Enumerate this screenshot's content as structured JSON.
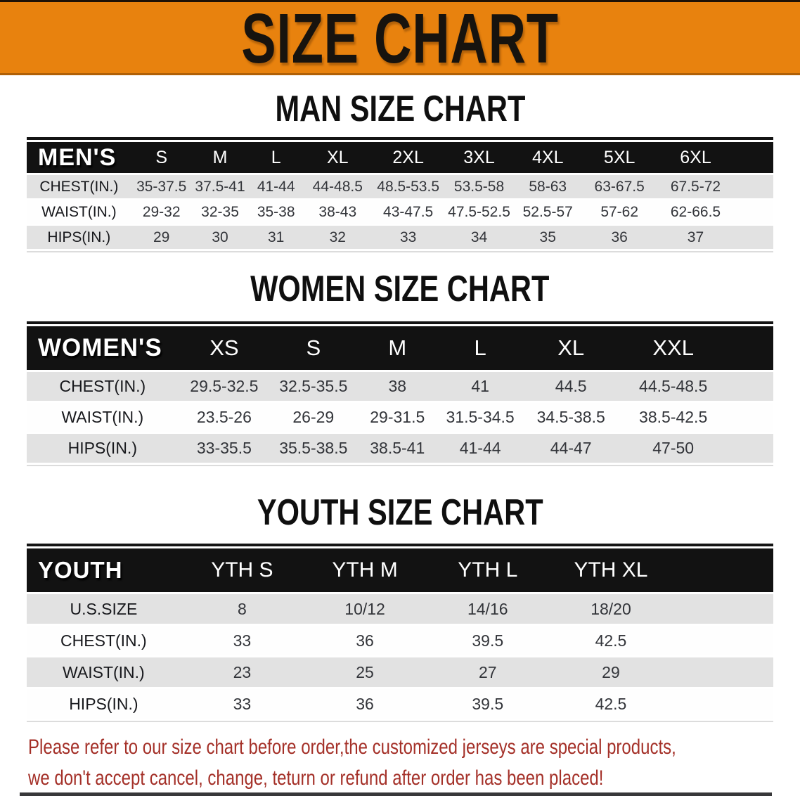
{
  "banner": {
    "title": "SIZE CHART",
    "bg_color": "#E8820E"
  },
  "sections": [
    {
      "heading": "MAN SIZE CHART",
      "table": {
        "corner_label": "MEN'S",
        "columns": [
          "S",
          "M",
          "L",
          "XL",
          "2XL",
          "3XL",
          "4XL",
          "5XL",
          "6XL"
        ],
        "rows": [
          {
            "label": "CHEST(IN.)",
            "values": [
              "35-37.5",
              "37.5-41",
              "41-44",
              "44-48.5",
              "48.5-53.5",
              "53.5-58",
              "58-63",
              "63-67.5",
              "67.5-72"
            ]
          },
          {
            "label": "WAIST(IN.)",
            "values": [
              "29-32",
              "32-35",
              "35-38",
              "38-43",
              "43-47.5",
              "47.5-52.5",
              "52.5-57",
              "57-62",
              "62-66.5"
            ]
          },
          {
            "label": "HIPS(IN.)",
            "values": [
              "29",
              "30",
              "31",
              "32",
              "33",
              "34",
              "35",
              "36",
              "37"
            ]
          }
        ]
      }
    },
    {
      "heading": "WOMEN SIZE CHART",
      "table": {
        "corner_label": "WOMEN'S",
        "columns": [
          "XS",
          "S",
          "M",
          "L",
          "XL",
          "XXL"
        ],
        "rows": [
          {
            "label": "CHEST(IN.)",
            "values": [
              "29.5-32.5",
              "32.5-35.5",
              "38",
              "41",
              "44.5",
              "44.5-48.5"
            ]
          },
          {
            "label": "WAIST(IN.)",
            "values": [
              "23.5-26",
              "26-29",
              "29-31.5",
              "31.5-34.5",
              "34.5-38.5",
              "38.5-42.5"
            ]
          },
          {
            "label": "HIPS(IN.)",
            "values": [
              "33-35.5",
              "35.5-38.5",
              "38.5-41",
              "41-44",
              "44-47",
              "47-50"
            ]
          }
        ]
      }
    },
    {
      "heading": "YOUTH SIZE CHART",
      "table": {
        "corner_label": "YOUTH",
        "columns": [
          "YTH S",
          "YTH M",
          "YTH L",
          "YTH XL"
        ],
        "rows": [
          {
            "label": "U.S.SIZE",
            "values": [
              "8",
              "10/12",
              "14/16",
              "18/20"
            ]
          },
          {
            "label": "CHEST(IN.)",
            "values": [
              "33",
              "36",
              "39.5",
              "42.5"
            ]
          },
          {
            "label": "WAIST(IN.)",
            "values": [
              "23",
              "25",
              "27",
              "29"
            ]
          },
          {
            "label": "HIPS(IN.)",
            "values": [
              "33",
              "36",
              "39.5",
              "42.5"
            ]
          }
        ]
      }
    }
  ],
  "note": {
    "color": "#A43028",
    "lines": [
      "Please refer to our size chart before order,the customized jerseys are special products,",
      "we don't accept cancel, change, teturn or refund after order has been placed!"
    ]
  }
}
